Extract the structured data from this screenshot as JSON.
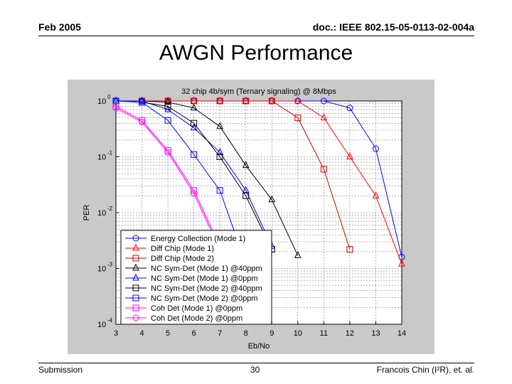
{
  "header": {
    "date": "Feb 2005",
    "doc_id": "doc.: IEEE 802.15-05-0113-02-004a"
  },
  "slide_title": "AWGN Performance",
  "footer": {
    "left": "Submission",
    "page": "30",
    "author": "Francois Chin (I²R), et. al."
  },
  "colors": {
    "plot_bg": "#c9c9c9",
    "axes_bg": "#ffffff"
  },
  "chart_data": {
    "type": "line",
    "title": "32 chip 4b/sym (Ternary signaling) @ 8Mbps",
    "xlabel": "Eb/No",
    "ylabel": "PER",
    "xlim": [
      3,
      14
    ],
    "ylim": [
      0.0001,
      1
    ],
    "yscale": "log",
    "grid": true,
    "legend_position": "bottom-left",
    "x_ticks": [
      "3",
      "4",
      "5",
      "6",
      "7",
      "8",
      "9",
      "10",
      "11",
      "12",
      "13",
      "14"
    ],
    "y_ticks": [
      {
        "value": 1,
        "base": "10",
        "exp": "0"
      },
      {
        "value": 0.1,
        "base": "10",
        "exp": "-1"
      },
      {
        "value": 0.01,
        "base": "10",
        "exp": "-2"
      },
      {
        "value": 0.001,
        "base": "10",
        "exp": "-3"
      },
      {
        "value": 0.0001,
        "base": "10",
        "exp": "-4"
      }
    ],
    "series": [
      {
        "name": "Energy Collection (Mode 1)",
        "color": "#0000ff",
        "marker": "circle",
        "x": [
          3,
          4,
          5,
          6,
          7,
          8,
          9,
          10,
          11,
          12,
          13,
          14
        ],
        "y": [
          1,
          1,
          1,
          1,
          1,
          1,
          1,
          1,
          1,
          0.75,
          0.14,
          0.0016
        ]
      },
      {
        "name": "Diff Chip (Mode 1)",
        "color": "#ff0000",
        "marker": "triangle",
        "x": [
          3,
          4,
          5,
          6,
          7,
          8,
          9,
          10,
          11,
          12,
          13,
          14
        ],
        "y": [
          1,
          1,
          1,
          1,
          1,
          1,
          1,
          1,
          0.5,
          0.1,
          0.02,
          0.0012
        ]
      },
      {
        "name": "Diff Chip (Mode 2)",
        "color": "#cc0000",
        "marker": "square",
        "x": [
          3,
          4,
          5,
          6,
          7,
          8,
          9,
          10,
          11,
          12
        ],
        "y": [
          1,
          1,
          1,
          1,
          1,
          1,
          1,
          0.5,
          0.06,
          0.0022
        ]
      },
      {
        "name": "NC Sym-Det (Mode 1) @40ppm",
        "color": "#000000",
        "marker": "triangle",
        "x": [
          3,
          4,
          5,
          6,
          7,
          8,
          9,
          10
        ],
        "y": [
          1,
          1,
          0.95,
          0.75,
          0.35,
          0.07,
          0.017,
          0.0017
        ]
      },
      {
        "name": "NC Sym-Det (Mode 1) @0ppm",
        "color": "#0000ff",
        "marker": "triangle",
        "x": [
          3,
          4,
          5,
          6,
          7,
          8,
          9
        ],
        "y": [
          1,
          1,
          0.7,
          0.33,
          0.12,
          0.025,
          0.0025
        ]
      },
      {
        "name": "NC Sym-Det (Mode 2) @40ppm",
        "color": "#000000",
        "marker": "square",
        "x": [
          3,
          4,
          5,
          6,
          7,
          8,
          9
        ],
        "y": [
          1,
          0.95,
          0.8,
          0.4,
          0.1,
          0.02,
          0.0022
        ]
      },
      {
        "name": "NC Sym-Det (Mode 2) @0ppm",
        "color": "#0000ff",
        "marker": "square",
        "x": [
          3,
          4,
          5,
          6,
          7,
          8
        ],
        "y": [
          1,
          0.95,
          0.45,
          0.11,
          0.025,
          0.0012
        ]
      },
      {
        "name": "Coh Det (Mode 1) @0ppm",
        "color": "#ff00ff",
        "marker": "square",
        "x": [
          3,
          4,
          5,
          6,
          7
        ],
        "y": [
          0.8,
          0.45,
          0.13,
          0.025,
          0.0025
        ]
      },
      {
        "name": "Coh Det (Mode 2) @0ppm",
        "color": "#ff00ff",
        "marker": "circle",
        "x": [
          3,
          4,
          5,
          6,
          7
        ],
        "y": [
          0.75,
          0.42,
          0.12,
          0.022,
          0.0022
        ]
      }
    ]
  }
}
